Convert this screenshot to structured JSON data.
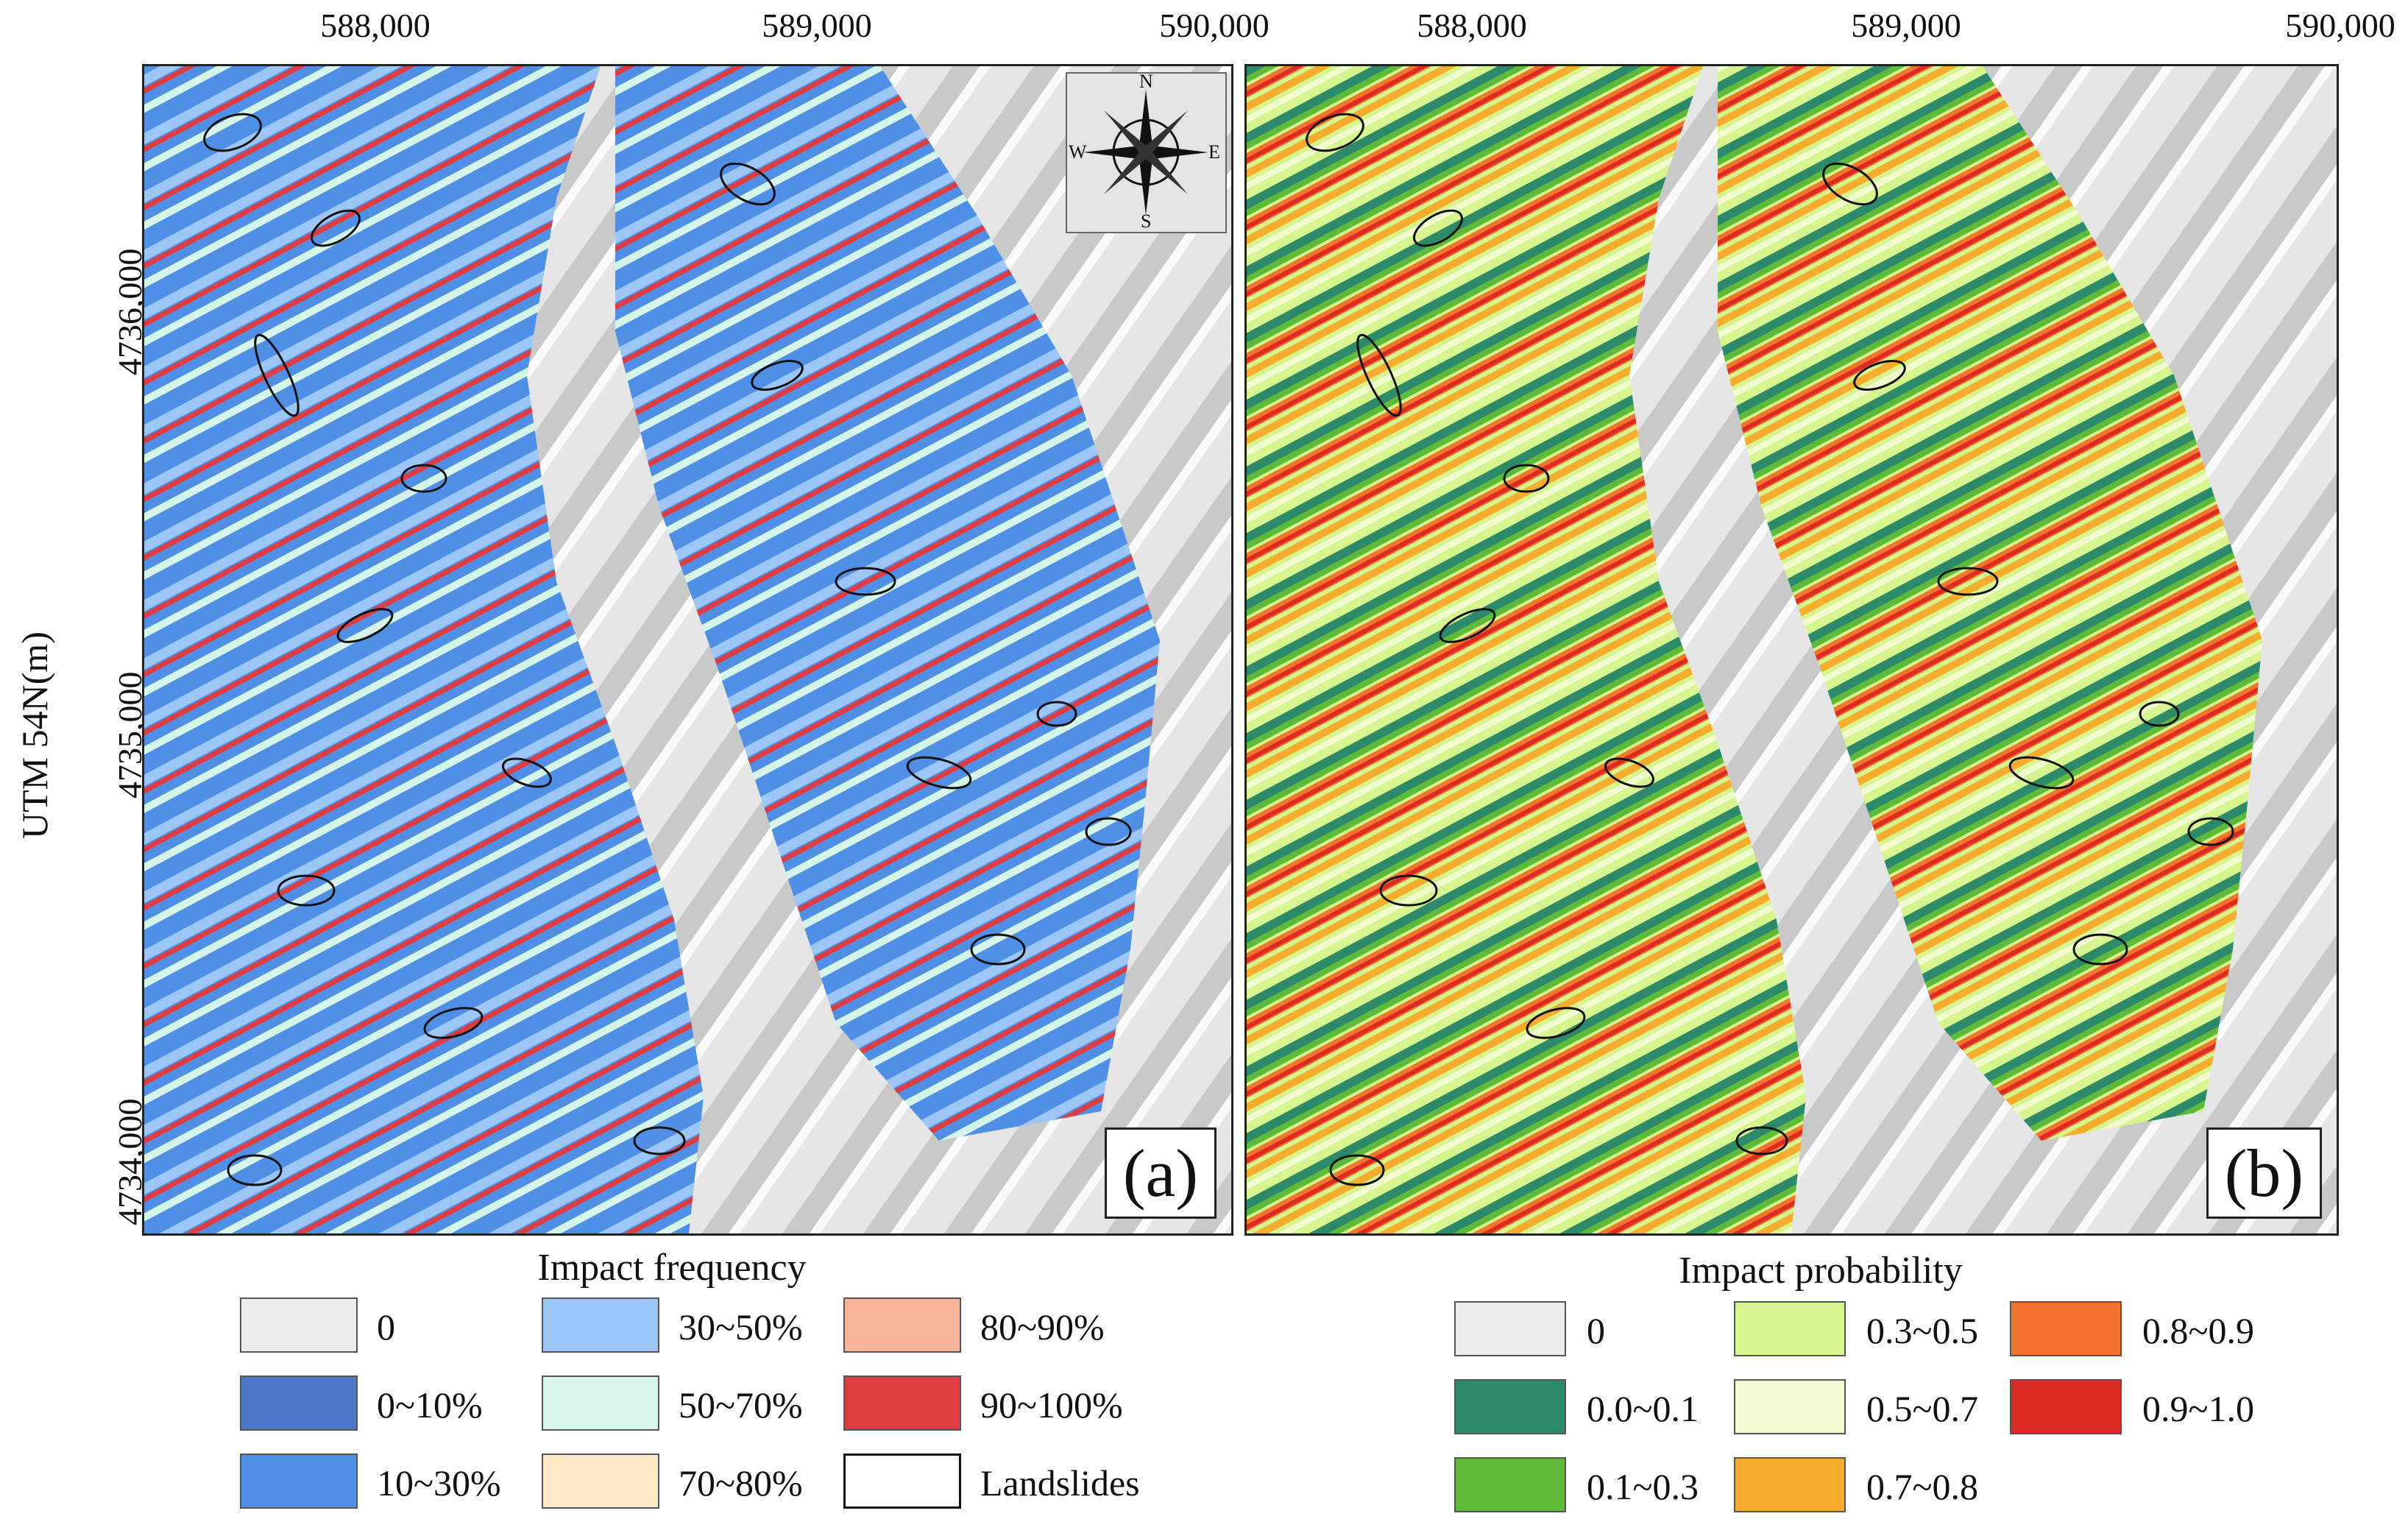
{
  "axis": {
    "x_ticks": [
      "588,000",
      "589,000",
      "590,000"
    ],
    "y_ticks": [
      "4736,000",
      "4735,000",
      "4734,000"
    ],
    "y_label": "UTM 54N(m)"
  },
  "compass": {
    "n": "N",
    "s": "S",
    "e": "E",
    "w": "W"
  },
  "panels": {
    "a": {
      "label": "(a)"
    },
    "b": {
      "label": "(b)"
    }
  },
  "legend_frequency": {
    "title": "Impact frequency",
    "items": [
      {
        "label": "0",
        "color": "#ececec"
      },
      {
        "label": "0~10%",
        "color": "#4a78c4"
      },
      {
        "label": "10~30%",
        "color": "#4f8fe6"
      },
      {
        "label": "30~50%",
        "color": "#9cc6f5"
      },
      {
        "label": "50~70%",
        "color": "#d6f5ea"
      },
      {
        "label": "70~80%",
        "color": "#fde9c6"
      },
      {
        "label": "80~90%",
        "color": "#f6b59a"
      },
      {
        "label": "90~100%",
        "color": "#de3c40"
      },
      {
        "label": "Landslides",
        "color": "#ffffff"
      }
    ]
  },
  "legend_probability": {
    "title": "Impact probability",
    "items": [
      {
        "label": "0",
        "color": "#ececec"
      },
      {
        "label": "0.0~0.1",
        "color": "#2c8a6a"
      },
      {
        "label": "0.1~0.3",
        "color": "#5fbb37"
      },
      {
        "label": "0.3~0.5",
        "color": "#d7f58f"
      },
      {
        "label": "0.5~0.7",
        "color": "#f2fbd0"
      },
      {
        "label": "0.7~0.8",
        "color": "#f6ad2e"
      },
      {
        "label": "0.8~0.9",
        "color": "#f4742c"
      },
      {
        "label": "0.9~1.0",
        "color": "#dc2a24"
      }
    ]
  }
}
